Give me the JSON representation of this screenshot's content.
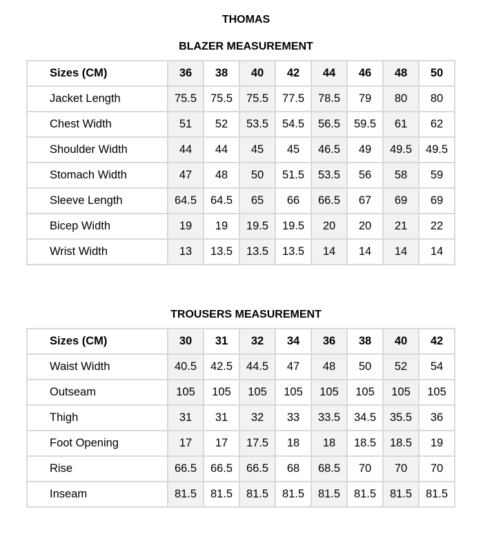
{
  "title": "THOMAS",
  "blazer": {
    "heading": "BLAZER MEASUREMENT",
    "header_label": "Sizes (CM)",
    "sizes": [
      "36",
      "38",
      "40",
      "42",
      "44",
      "46",
      "48",
      "50"
    ],
    "rows": [
      {
        "label": "Jacket Length",
        "values": [
          "75.5",
          "75.5",
          "75.5",
          "77.5",
          "78.5",
          "79",
          "80",
          "80"
        ]
      },
      {
        "label": "Chest Width",
        "values": [
          "51",
          "52",
          "53.5",
          "54.5",
          "56.5",
          "59.5",
          "61",
          "62"
        ]
      },
      {
        "label": "Shoulder Width",
        "values": [
          "44",
          "44",
          "45",
          "45",
          "46.5",
          "49",
          "49.5",
          "49.5"
        ]
      },
      {
        "label": "Stomach  Width",
        "values": [
          "47",
          "48",
          "50",
          "51.5",
          "53.5",
          "56",
          "58",
          "59"
        ]
      },
      {
        "label": "Sleeve Length",
        "values": [
          "64.5",
          "64.5",
          "65",
          "66",
          "66.5",
          "67",
          "69",
          "69"
        ]
      },
      {
        "label": "Bicep Width",
        "values": [
          "19",
          "19",
          "19.5",
          "19.5",
          "20",
          "20",
          "21",
          "22"
        ]
      },
      {
        "label": "Wrist Width",
        "values": [
          "13",
          "13.5",
          "13.5",
          "13.5",
          "14",
          "14",
          "14",
          "14"
        ]
      }
    ]
  },
  "trousers": {
    "heading": "TROUSERS MEASUREMENT",
    "header_label": "Sizes (CM)",
    "sizes": [
      "30",
      "31",
      "32",
      "34",
      "36",
      "38",
      "40",
      "42"
    ],
    "rows": [
      {
        "label": "Waist Width",
        "values": [
          "40.5",
          "42.5",
          "44.5",
          "47",
          "48",
          "50",
          "52",
          "54"
        ]
      },
      {
        "label": "Outseam",
        "values": [
          "105",
          "105",
          "105",
          "105",
          "105",
          "105",
          "105",
          "105"
        ]
      },
      {
        "label": "Thigh",
        "values": [
          "31",
          "31",
          "32",
          "33",
          "33.5",
          "34.5",
          "35.5",
          "36"
        ]
      },
      {
        "label": "Foot Opening",
        "values": [
          "17",
          "17",
          "17.5",
          "18",
          "18",
          "18.5",
          "18.5",
          "19"
        ]
      },
      {
        "label": "Rise",
        "values": [
          "66.5",
          "66.5",
          "66.5",
          "68",
          "68.5",
          "70",
          "70",
          "70"
        ]
      },
      {
        "label": "Inseam",
        "values": [
          "81.5",
          "81.5",
          "81.5",
          "81.5",
          "81.5",
          "81.5",
          "81.5",
          "81.5"
        ]
      }
    ]
  },
  "colors": {
    "shade": "#f2f2f2",
    "border": "#d9d9d9"
  }
}
